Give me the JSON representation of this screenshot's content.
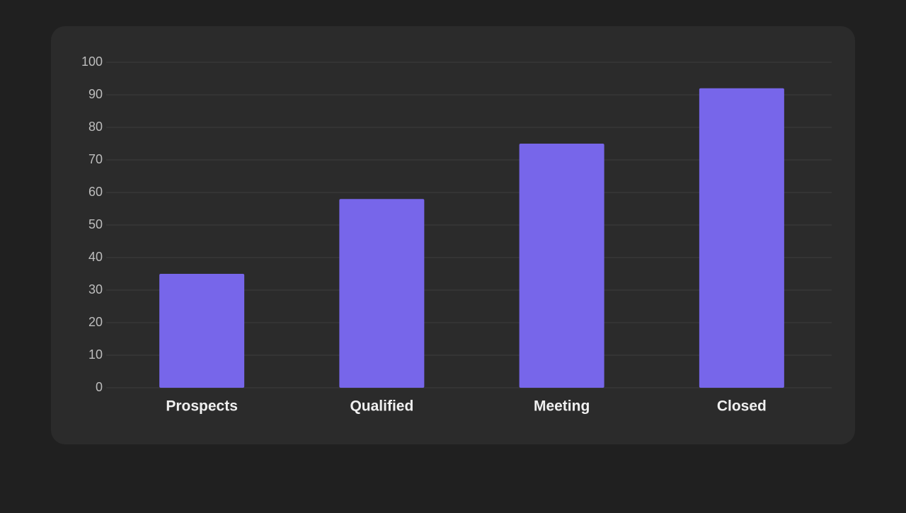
{
  "chart_data": {
    "type": "bar",
    "categories": [
      "Prospects",
      "Qualified",
      "Meeting",
      "Closed"
    ],
    "values": [
      35,
      58,
      75,
      92
    ],
    "color": "#7766ea",
    "ylim": [
      0,
      100
    ],
    "yticks": [
      0,
      10,
      20,
      30,
      40,
      50,
      60,
      70,
      80,
      90,
      100
    ],
    "grid": true
  }
}
